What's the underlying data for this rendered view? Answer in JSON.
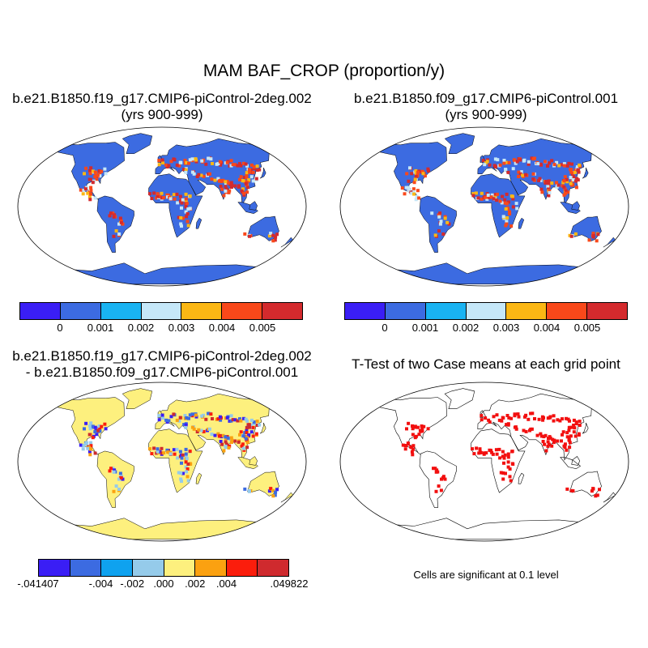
{
  "title": "MAM BAF_CROP (proportion/y)",
  "panels": {
    "top_left": {
      "title_line1": "b.e21.B1850.f19_g17.CMIP6-piControl-2deg.002",
      "title_line2": "(yrs 900-999)"
    },
    "top_right": {
      "title_line1": "b.e21.B1850.f09_g17.CMIP6-piControl.001",
      "title_line2": "(yrs 900-999)"
    },
    "bottom_left": {
      "title_line1": "b.e21.B1850.f19_g17.CMIP6-piControl-2deg.002",
      "title_line2": "- b.e21.B1850.f09_g17.CMIP6-piControl.001"
    },
    "bottom_right": {
      "title_line1": "T-Test of two Case means at each grid point",
      "note": "Cells are significant at 0.1 level"
    }
  },
  "colorbars": {
    "case": {
      "colors": [
        "#3a1ef5",
        "#3c6be1",
        "#19b3f2",
        "#c5e7f8",
        "#fbb714",
        "#f9481a",
        "#d42a2d"
      ],
      "labels": [
        "0",
        "0.001",
        "0.002",
        "0.003",
        "0.004",
        "0.005"
      ]
    },
    "diff": {
      "colors": [
        "#3a1ef5",
        "#3c6be1",
        "#0fa2ef",
        "#95cbea",
        "#fdf07e",
        "#fba110",
        "#fb1d0c",
        "#cf2a2e"
      ],
      "labels": [
        "-.041407",
        "-.004",
        "-.002",
        ".000",
        ".002",
        ".004",
        ".049822"
      ]
    }
  },
  "map_colors": {
    "land": "#3c6be1",
    "land_diff": "#fdf07e",
    "significant": "#f20f0f"
  }
}
